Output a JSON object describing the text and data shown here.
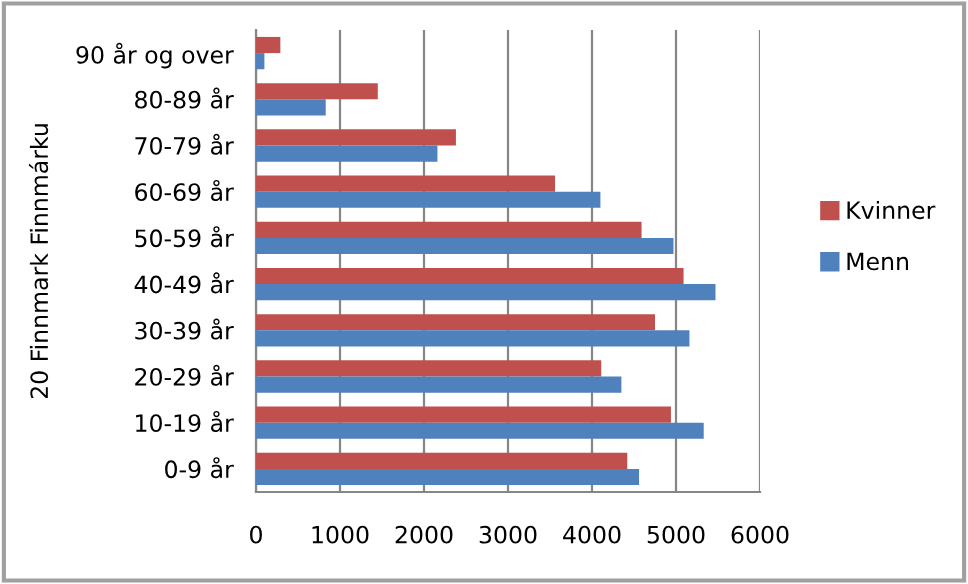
{
  "chart_data": {
    "type": "bar",
    "orientation": "horizontal",
    "ylabel": "20 Finnmark Finnmárku",
    "categories": [
      "90 år og over",
      "80-89 år",
      "70-79 år",
      "60-69 år",
      "50-59 år",
      "40-49 år",
      "30-39 år",
      "20-29 år",
      "10-19 år",
      "0-9 år"
    ],
    "series": [
      {
        "name": "Kvinner",
        "color": "#c0504d",
        "values": [
          290,
          1450,
          2380,
          3560,
          4590,
          5090,
          4750,
          4110,
          4940,
          4420
        ]
      },
      {
        "name": "Menn",
        "color": "#4f81bd",
        "values": [
          100,
          830,
          2160,
          4100,
          4970,
          5470,
          5160,
          4350,
          5330,
          4560
        ]
      }
    ],
    "xlim": [
      0,
      6000
    ],
    "xticks": [
      0,
      1000,
      2000,
      3000,
      4000,
      5000,
      6000
    ],
    "grid": "x",
    "legend": "right"
  }
}
